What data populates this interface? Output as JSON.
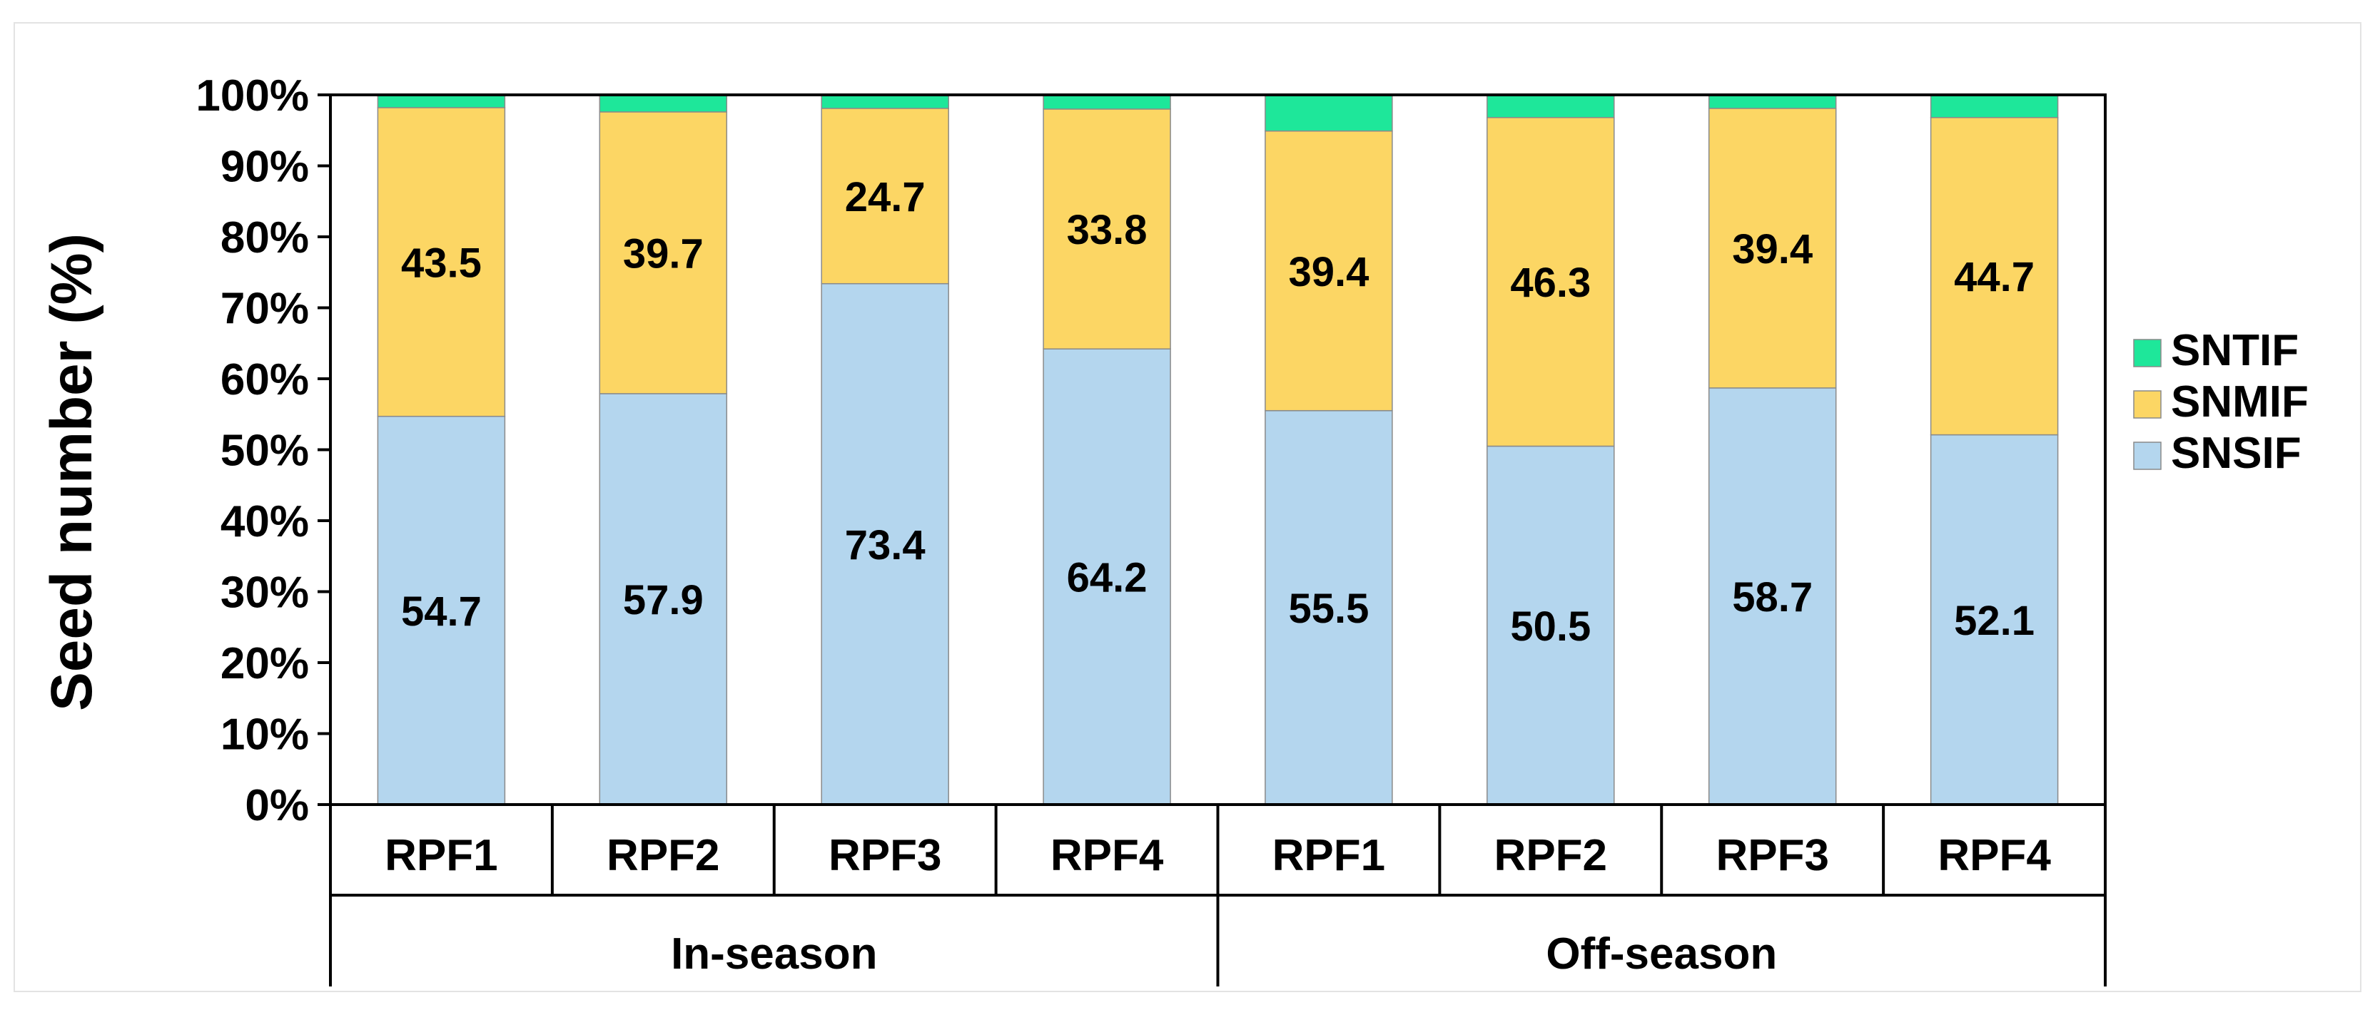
{
  "chart_data": {
    "type": "bar",
    "stacked": true,
    "percent": true,
    "ylabel": "Seed number (%)",
    "ylim": [
      0,
      100
    ],
    "yticks": [
      "0%",
      "10%",
      "20%",
      "30%",
      "40%",
      "50%",
      "60%",
      "70%",
      "80%",
      "90%",
      "100%"
    ],
    "categories": [
      "RPF1",
      "RPF2",
      "RPF3",
      "RPF4",
      "RPF1",
      "RPF2",
      "RPF3",
      "RPF4"
    ],
    "groups": [
      {
        "label": "In-season",
        "span": 4
      },
      {
        "label": "Off-season",
        "span": 4
      }
    ],
    "series": [
      {
        "name": "SNSIF",
        "color": "#b4d6ee",
        "values": [
          54.7,
          57.9,
          73.4,
          64.2,
          55.5,
          50.5,
          58.7,
          52.1
        ],
        "labels": [
          "54.7",
          "57.9",
          "73.4",
          "64.2",
          "55.5",
          "50.5",
          "58.7",
          "52.1"
        ]
      },
      {
        "name": "SNMIF",
        "color": "#fcd664",
        "values": [
          43.5,
          39.7,
          24.7,
          33.8,
          39.4,
          46.3,
          39.4,
          44.7
        ],
        "labels": [
          "43.5",
          "39.7",
          "24.7",
          "33.8",
          "39.4",
          "46.3",
          "39.4",
          "44.7"
        ]
      },
      {
        "name": "SNTIF",
        "color": "#1ee79a",
        "values": [
          1.8,
          2.4,
          1.9,
          2.0,
          5.1,
          3.2,
          1.9,
          3.2
        ],
        "labels": null
      }
    ],
    "legend": {
      "placement": "right",
      "order": [
        "SNTIF",
        "SNMIF",
        "SNSIF"
      ]
    }
  }
}
